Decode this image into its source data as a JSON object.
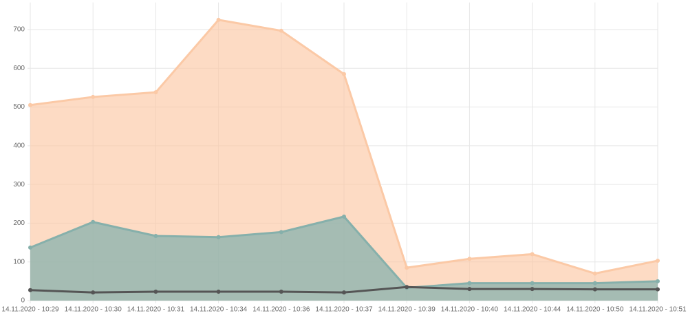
{
  "chart_data": {
    "type": "area",
    "categories": [
      "14.11.2020 - 10:29",
      "14.11.2020 - 10:30",
      "14.11.2020 - 10:31",
      "14.11.2020 - 10:34",
      "14.11.2020 - 10:36",
      "14.11.2020 - 10:37",
      "14.11.2020 - 10:39",
      "14.11.2020 - 10:40",
      "14.11.2020 - 10:44",
      "14.11.2020 - 10:50",
      "14.11.2020 - 10:51"
    ],
    "series": [
      {
        "color": "#fbc9a6",
        "fill": "rgba(252,200,165,0.65)",
        "values": [
          505,
          526,
          538,
          725,
          697,
          585,
          85,
          108,
          120,
          70,
          103
        ]
      },
      {
        "color": "#86b0ab",
        "fill": "rgba(135,178,173,0.75)",
        "values": [
          137,
          203,
          167,
          164,
          177,
          217,
          33,
          45,
          45,
          45,
          50
        ]
      },
      {
        "color": "#555555",
        "fill": null,
        "values": [
          27,
          21,
          23,
          23,
          23,
          21,
          35,
          30,
          30,
          29,
          29
        ]
      }
    ],
    "ylim": [
      0,
      770
    ],
    "yticks": [
      0,
      100,
      200,
      300,
      400,
      500,
      600,
      700
    ],
    "grid": true
  }
}
